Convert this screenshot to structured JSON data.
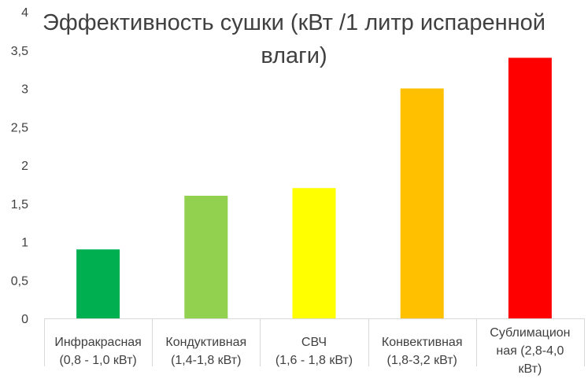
{
  "chart_data": {
    "type": "bar",
    "title": "Эффективность сушки (кВт /1 литр испаренной влаги)",
    "categories": [
      "Инфракрасная (0,8 - 1,0 кВт)",
      "Кондуктивная (1,4-1,8 кВт)",
      "СВЧ (1,6 - 1,8 кВт)",
      "Конвективная (1,8-3,2 кВт)",
      "Сублимационная (2,8-4,0 кВт)"
    ],
    "category_lines": [
      [
        "Инфракрасная",
        "(0,8 - 1,0 кВт)"
      ],
      [
        "Кондуктивная",
        "(1,4-1,8 кВт)"
      ],
      [
        "СВЧ",
        "(1,6 - 1,8 кВт)"
      ],
      [
        "Конвективная",
        "(1,8-3,2 кВт)"
      ],
      [
        "Сублимацион",
        "ная (2,8-4,0",
        "кВт)"
      ]
    ],
    "values": [
      0.9,
      1.6,
      1.7,
      3.0,
      3.4
    ],
    "bar_colors": [
      "#00B050",
      "#92D050",
      "#FFFF00",
      "#FFC000",
      "#FF0000"
    ],
    "ylim": [
      0,
      4
    ],
    "yticks": [
      "0",
      "0,5",
      "1",
      "1,5",
      "2",
      "2,5",
      "3",
      "3,5",
      "4"
    ],
    "ytick_values": [
      0,
      0.5,
      1,
      1.5,
      2,
      2.5,
      3,
      3.5,
      4
    ],
    "grid": false,
    "legend": "none"
  }
}
